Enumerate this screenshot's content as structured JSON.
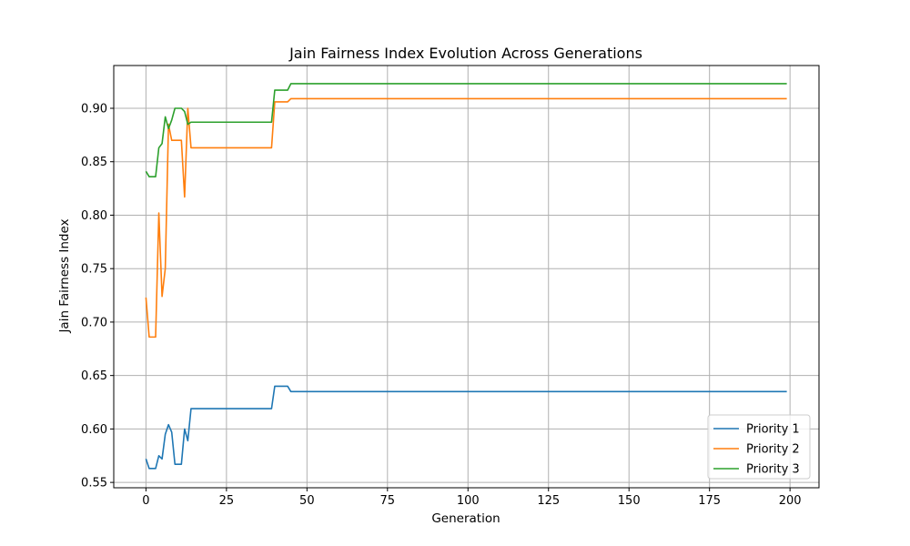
{
  "chart_data": {
    "type": "line",
    "title": "Jain Fairness Index Evolution Across Generations",
    "xlabel": "Generation",
    "ylabel": "Jain Fairness Index",
    "xlim": [
      -10,
      209
    ],
    "ylim": [
      0.545,
      0.94
    ],
    "xticks": [
      0,
      25,
      50,
      75,
      100,
      125,
      150,
      175,
      200
    ],
    "xtick_labels": [
      "0",
      "25",
      "50",
      "75",
      "100",
      "125",
      "150",
      "175",
      "200"
    ],
    "yticks": [
      0.55,
      0.6,
      0.65,
      0.7,
      0.75,
      0.8,
      0.85,
      0.9
    ],
    "ytick_labels": [
      "0.55",
      "0.60",
      "0.65",
      "0.70",
      "0.75",
      "0.80",
      "0.85",
      "0.90"
    ],
    "grid": true,
    "legend_position": "lower-right",
    "series": [
      {
        "name": "Priority 1",
        "color": "#1f77b4",
        "points": [
          [
            0,
            0.572
          ],
          [
            1,
            0.563
          ],
          [
            2,
            0.563
          ],
          [
            3,
            0.563
          ],
          [
            4,
            0.575
          ],
          [
            5,
            0.572
          ],
          [
            6,
            0.595
          ],
          [
            7,
            0.604
          ],
          [
            8,
            0.597
          ],
          [
            9,
            0.567
          ],
          [
            10,
            0.567
          ],
          [
            11,
            0.567
          ],
          [
            12,
            0.6
          ],
          [
            13,
            0.589
          ],
          [
            14,
            0.619
          ],
          [
            39,
            0.619
          ],
          [
            40,
            0.64
          ],
          [
            44,
            0.64
          ],
          [
            45,
            0.635
          ],
          [
            199,
            0.635
          ]
        ]
      },
      {
        "name": "Priority 2",
        "color": "#ff7f0e",
        "points": [
          [
            0,
            0.723
          ],
          [
            1,
            0.686
          ],
          [
            2,
            0.686
          ],
          [
            3,
            0.686
          ],
          [
            4,
            0.802
          ],
          [
            5,
            0.724
          ],
          [
            6,
            0.75
          ],
          [
            7,
            0.885
          ],
          [
            8,
            0.87
          ],
          [
            9,
            0.87
          ],
          [
            10,
            0.87
          ],
          [
            11,
            0.87
          ],
          [
            12,
            0.817
          ],
          [
            13,
            0.9
          ],
          [
            14,
            0.863
          ],
          [
            39,
            0.863
          ],
          [
            40,
            0.906
          ],
          [
            44,
            0.906
          ],
          [
            45,
            0.909
          ],
          [
            199,
            0.909
          ]
        ]
      },
      {
        "name": "Priority 3",
        "color": "#2ca02c",
        "points": [
          [
            0,
            0.841
          ],
          [
            1,
            0.836
          ],
          [
            2,
            0.836
          ],
          [
            3,
            0.836
          ],
          [
            4,
            0.863
          ],
          [
            5,
            0.867
          ],
          [
            6,
            0.892
          ],
          [
            7,
            0.881
          ],
          [
            8,
            0.889
          ],
          [
            9,
            0.9
          ],
          [
            10,
            0.9
          ],
          [
            11,
            0.9
          ],
          [
            12,
            0.897
          ],
          [
            13,
            0.885
          ],
          [
            14,
            0.887
          ],
          [
            39,
            0.887
          ],
          [
            40,
            0.917
          ],
          [
            44,
            0.917
          ],
          [
            45,
            0.923
          ],
          [
            199,
            0.923
          ]
        ]
      }
    ]
  }
}
